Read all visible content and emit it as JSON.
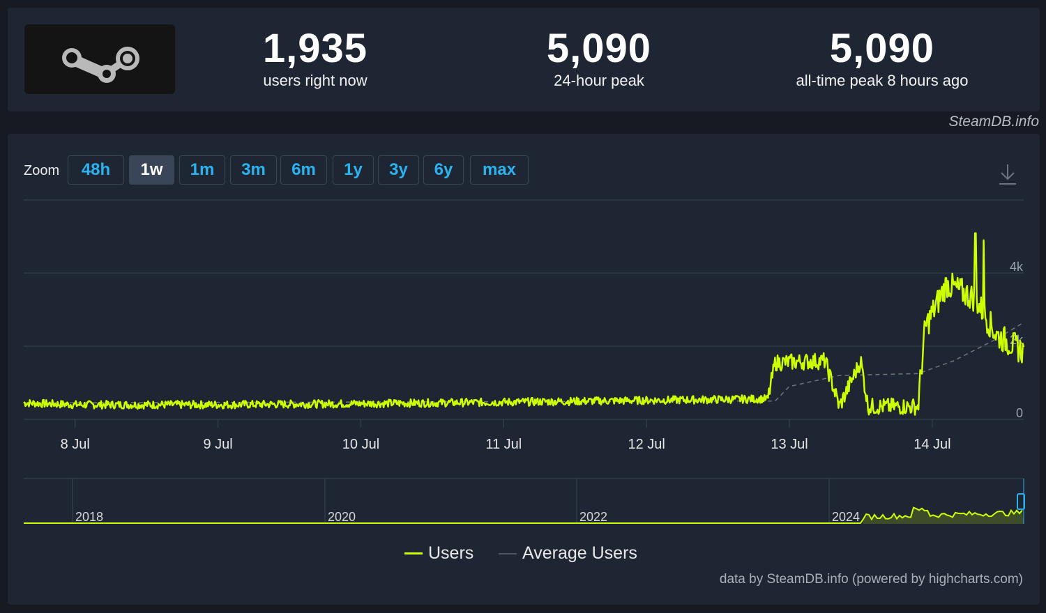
{
  "stats": {
    "current": {
      "value": "1,935",
      "label": "users right now"
    },
    "peak24": {
      "value": "5,090",
      "label": "24-hour peak"
    },
    "alltime": {
      "value": "5,090",
      "label": "all-time peak 8 hours ago"
    }
  },
  "brand_tag": "SteamDB.info",
  "zoom": {
    "label": "Zoom",
    "buttons": [
      "48h",
      "1w",
      "1m",
      "3m",
      "6m",
      "1y",
      "3y",
      "6y",
      "max"
    ],
    "active": "1w"
  },
  "colors": {
    "users": "#ccff00",
    "average": "#8a8a8a",
    "accent": "#2bb3f0",
    "panel": "#1e2633"
  },
  "chart_data": {
    "type": "line",
    "x_axis": {
      "tick_labels": [
        "8 Jul",
        "9 Jul",
        "10 Jul",
        "11 Jul",
        "12 Jul",
        "13 Jul",
        "14 Jul"
      ],
      "range_days": [
        7.64,
        14.64
      ]
    },
    "y_axis": {
      "tick_labels": [
        "0",
        "2k",
        "4k"
      ],
      "range": [
        0,
        5000
      ]
    },
    "series": [
      {
        "name": "Users",
        "description": "noisy hourly player count",
        "anchors_day": [
          7.64,
          8.0,
          9.0,
          10.0,
          11.0,
          12.0,
          12.85,
          12.9,
          13.25,
          13.35,
          13.5,
          13.55,
          13.9,
          13.95,
          14.1,
          14.3,
          14.45,
          14.64
        ],
        "anchors_value": [
          450,
          400,
          400,
          430,
          470,
          520,
          560,
          1550,
          1600,
          350,
          1600,
          350,
          350,
          2500,
          3700,
          3300,
          2300,
          1850
        ],
        "spikes": [
          {
            "day": 14.3,
            "value": 5090
          },
          {
            "day": 14.36,
            "value": 4900
          }
        ]
      },
      {
        "name": "Average Users",
        "values_day": [
          7.64,
          12.5,
          12.9,
          13.0,
          13.35,
          13.9,
          14.15,
          14.45,
          14.64
        ],
        "values": [
          450,
          500,
          500,
          900,
          1200,
          1250,
          1600,
          2200,
          2650
        ]
      }
    ],
    "navigator": {
      "year_labels": [
        "2018",
        "2020",
        "2022",
        "2024"
      ]
    },
    "legend": [
      "Users",
      "Average Users"
    ],
    "legend_position": "bottom-center",
    "grid": true
  },
  "credit": "data by SteamDB.info (powered by highcharts.com)"
}
